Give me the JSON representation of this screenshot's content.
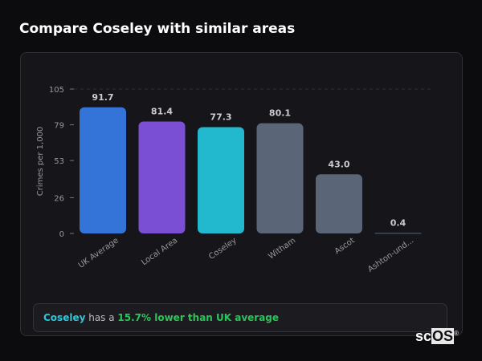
{
  "header": {
    "title": "Compare Coseley with similar areas"
  },
  "chart_data": {
    "type": "bar",
    "ylabel": "Crimes per 1,000",
    "xlabel": "",
    "ylim": [
      0,
      105
    ],
    "yticks": [
      0,
      26,
      53,
      79,
      105
    ],
    "grid": "top dashed line only",
    "categories": [
      "UK Average",
      "Local Area",
      "Coseley",
      "Witham",
      "Ascot",
      "Ashton-und..."
    ],
    "values": [
      91.7,
      81.4,
      77.3,
      80.1,
      43.0,
      0.4
    ],
    "value_labels": [
      "91.7",
      "81.4",
      "77.3",
      "80.1",
      "43.0",
      "0.4"
    ],
    "colors": [
      "#3474d8",
      "#7a4fd4",
      "#22b9cf",
      "#5a6577",
      "#5a6577",
      "#5a6577"
    ]
  },
  "summary": {
    "area": "Coseley",
    "middle": " has a ",
    "highlight": "15.7% lower than UK average"
  },
  "logo": {
    "text_a": "sc",
    "text_b": "OS",
    "mark": "®"
  }
}
